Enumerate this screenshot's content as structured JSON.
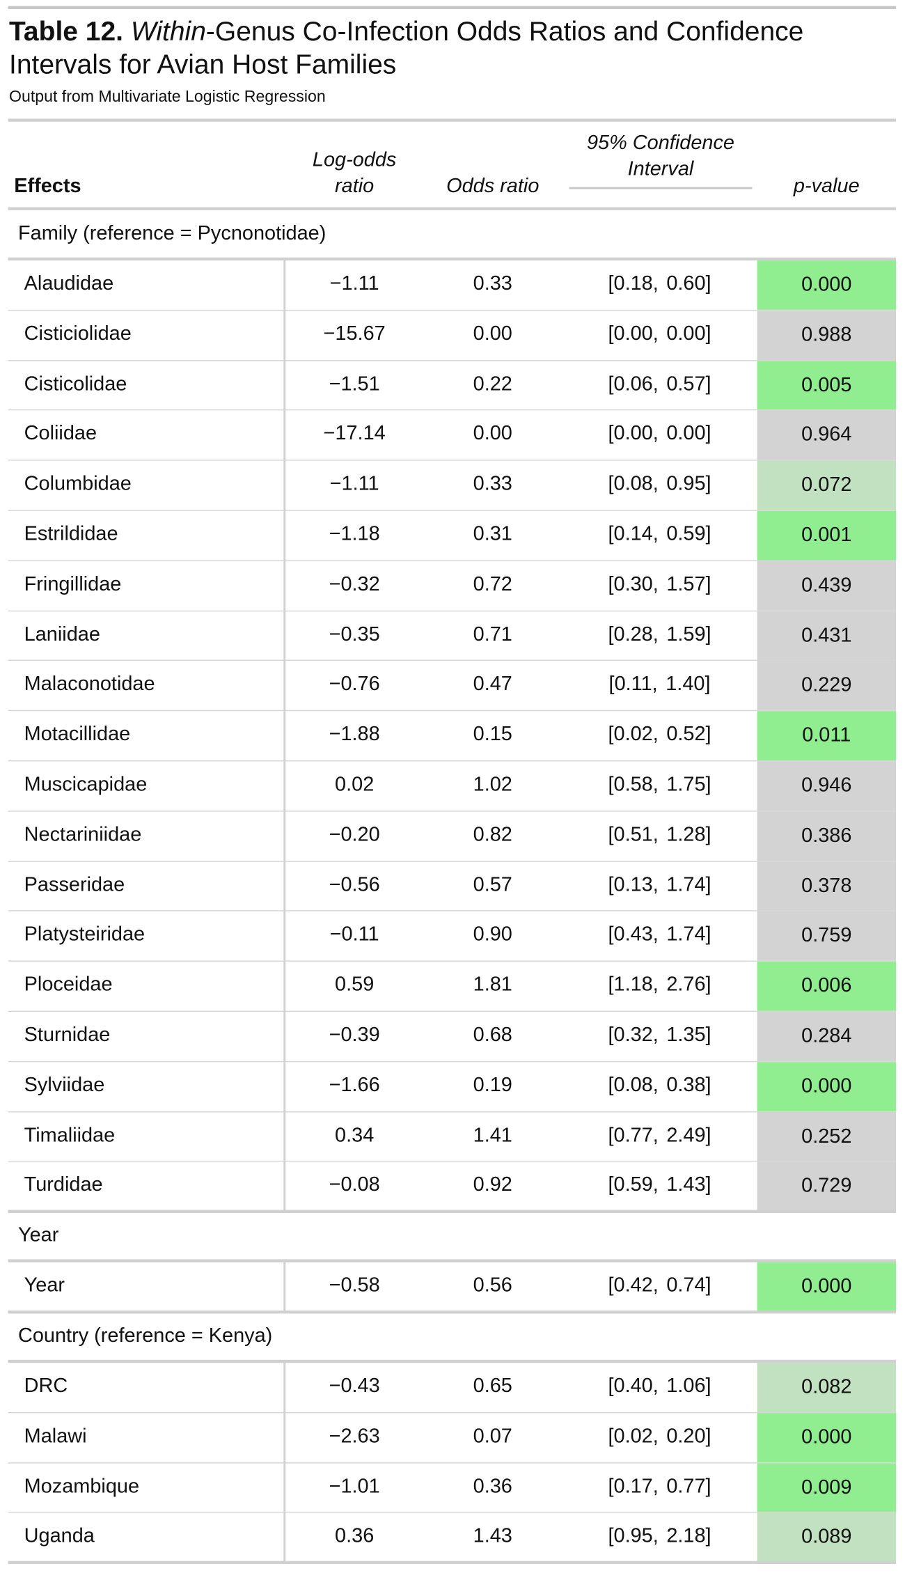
{
  "title": {
    "number": "Table 12.",
    "italic": "Within",
    "rest": "-Genus Co-Infection Odds Ratios and Confidence Intervals for Avian Host Families"
  },
  "subtitle": "Output from Multivariate Logistic Regression",
  "columns": {
    "effects": "Effects",
    "log_odds_line1": "Log-odds",
    "log_odds_line2": "ratio",
    "odds_ratio": "Odds ratio",
    "ci_line1": "95% Confidence",
    "ci_line2": "Interval",
    "p_value": "p-value"
  },
  "colors": {
    "significant": "#90ee90",
    "marginal": "#c1e1c1",
    "not_significant": "#d3d3d3"
  },
  "groups": [
    {
      "label": "Family (reference = Pycnonotidae)",
      "rows": [
        {
          "effect": "Alaudidae",
          "log_odds": "−1.11",
          "odds_ratio": "0.33",
          "ci_low": "[0.18,",
          "ci_high": "0.60]",
          "p_value": "0.000",
          "significance": "significant"
        },
        {
          "effect": "Cisticiolidae",
          "log_odds": "−15.67",
          "odds_ratio": "0.00",
          "ci_low": "[0.00,",
          "ci_high": "0.00]",
          "p_value": "0.988",
          "significance": "not_significant"
        },
        {
          "effect": "Cisticolidae",
          "log_odds": "−1.51",
          "odds_ratio": "0.22",
          "ci_low": "[0.06,",
          "ci_high": "0.57]",
          "p_value": "0.005",
          "significance": "significant"
        },
        {
          "effect": "Coliidae",
          "log_odds": "−17.14",
          "odds_ratio": "0.00",
          "ci_low": "[0.00,",
          "ci_high": "0.00]",
          "p_value": "0.964",
          "significance": "not_significant"
        },
        {
          "effect": "Columbidae",
          "log_odds": "−1.11",
          "odds_ratio": "0.33",
          "ci_low": "[0.08,",
          "ci_high": "0.95]",
          "p_value": "0.072",
          "significance": "marginal"
        },
        {
          "effect": "Estrildidae",
          "log_odds": "−1.18",
          "odds_ratio": "0.31",
          "ci_low": "[0.14,",
          "ci_high": "0.59]",
          "p_value": "0.001",
          "significance": "significant"
        },
        {
          "effect": "Fringillidae",
          "log_odds": "−0.32",
          "odds_ratio": "0.72",
          "ci_low": "[0.30,",
          "ci_high": "1.57]",
          "p_value": "0.439",
          "significance": "not_significant"
        },
        {
          "effect": "Laniidae",
          "log_odds": "−0.35",
          "odds_ratio": "0.71",
          "ci_low": "[0.28,",
          "ci_high": "1.59]",
          "p_value": "0.431",
          "significance": "not_significant"
        },
        {
          "effect": "Malaconotidae",
          "log_odds": "−0.76",
          "odds_ratio": "0.47",
          "ci_low": "[0.11,",
          "ci_high": "1.40]",
          "p_value": "0.229",
          "significance": "not_significant"
        },
        {
          "effect": "Motacillidae",
          "log_odds": "−1.88",
          "odds_ratio": "0.15",
          "ci_low": "[0.02,",
          "ci_high": "0.52]",
          "p_value": "0.011",
          "significance": "significant"
        },
        {
          "effect": "Muscicapidae",
          "log_odds": "0.02",
          "odds_ratio": "1.02",
          "ci_low": "[0.58,",
          "ci_high": "1.75]",
          "p_value": "0.946",
          "significance": "not_significant"
        },
        {
          "effect": "Nectariniidae",
          "log_odds": "−0.20",
          "odds_ratio": "0.82",
          "ci_low": "[0.51,",
          "ci_high": "1.28]",
          "p_value": "0.386",
          "significance": "not_significant"
        },
        {
          "effect": "Passeridae",
          "log_odds": "−0.56",
          "odds_ratio": "0.57",
          "ci_low": "[0.13,",
          "ci_high": "1.74]",
          "p_value": "0.378",
          "significance": "not_significant"
        },
        {
          "effect": "Platysteiridae",
          "log_odds": "−0.11",
          "odds_ratio": "0.90",
          "ci_low": "[0.43,",
          "ci_high": "1.74]",
          "p_value": "0.759",
          "significance": "not_significant"
        },
        {
          "effect": "Ploceidae",
          "log_odds": "0.59",
          "odds_ratio": "1.81",
          "ci_low": "[1.18,",
          "ci_high": "2.76]",
          "p_value": "0.006",
          "significance": "significant"
        },
        {
          "effect": "Sturnidae",
          "log_odds": "−0.39",
          "odds_ratio": "0.68",
          "ci_low": "[0.32,",
          "ci_high": "1.35]",
          "p_value": "0.284",
          "significance": "not_significant"
        },
        {
          "effect": "Sylviidae",
          "log_odds": "−1.66",
          "odds_ratio": "0.19",
          "ci_low": "[0.08,",
          "ci_high": "0.38]",
          "p_value": "0.000",
          "significance": "significant"
        },
        {
          "effect": "Timaliidae",
          "log_odds": "0.34",
          "odds_ratio": "1.41",
          "ci_low": "[0.77,",
          "ci_high": "2.49]",
          "p_value": "0.252",
          "significance": "not_significant"
        },
        {
          "effect": "Turdidae",
          "log_odds": "−0.08",
          "odds_ratio": "0.92",
          "ci_low": "[0.59,",
          "ci_high": "1.43]",
          "p_value": "0.729",
          "significance": "not_significant"
        }
      ]
    },
    {
      "label": "Year",
      "rows": [
        {
          "effect": "Year",
          "log_odds": "−0.58",
          "odds_ratio": "0.56",
          "ci_low": "[0.42,",
          "ci_high": "0.74]",
          "p_value": "0.000",
          "significance": "significant"
        }
      ]
    },
    {
      "label": "Country (reference = Kenya)",
      "rows": [
        {
          "effect": "DRC",
          "log_odds": "−0.43",
          "odds_ratio": "0.65",
          "ci_low": "[0.40,",
          "ci_high": "1.06]",
          "p_value": "0.082",
          "significance": "marginal"
        },
        {
          "effect": "Malawi",
          "log_odds": "−2.63",
          "odds_ratio": "0.07",
          "ci_low": "[0.02,",
          "ci_high": "0.20]",
          "p_value": "0.000",
          "significance": "significant"
        },
        {
          "effect": "Mozambique",
          "log_odds": "−1.01",
          "odds_ratio": "0.36",
          "ci_low": "[0.17,",
          "ci_high": "0.77]",
          "p_value": "0.009",
          "significance": "significant"
        },
        {
          "effect": "Uganda",
          "log_odds": "0.36",
          "odds_ratio": "1.43",
          "ci_low": "[0.95,",
          "ci_high": "2.18]",
          "p_value": "0.089",
          "significance": "marginal"
        }
      ]
    }
  ]
}
